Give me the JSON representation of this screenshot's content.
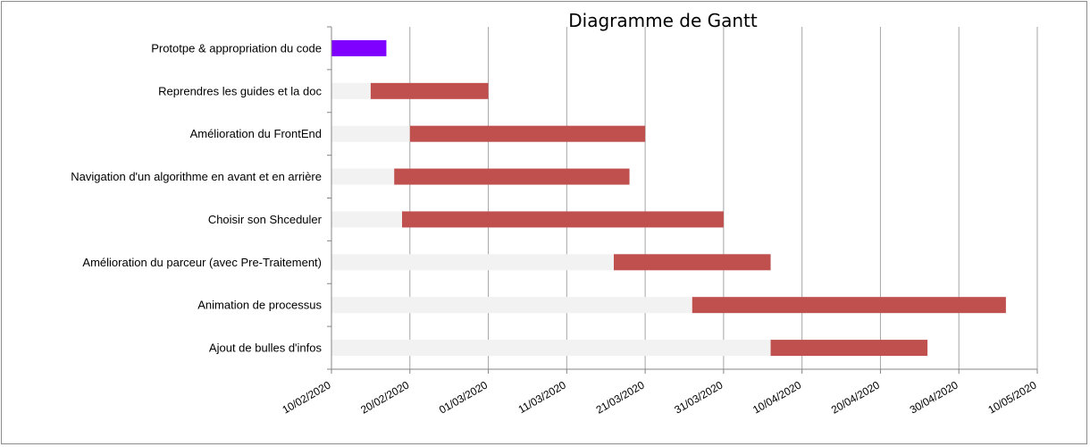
{
  "chart_data": {
    "type": "bar",
    "orientation": "horizontal",
    "stacked": true,
    "title": "Diagramme de Gantt",
    "xlabel": "",
    "ylabel": "",
    "xlim": [
      "2020-02-10",
      "2020-05-10"
    ],
    "x_ticks": [
      "10/02/2020",
      "20/02/2020",
      "01/03/2020",
      "11/03/2020",
      "21/03/2020",
      "31/03/2020",
      "10/04/2020",
      "20/04/2020",
      "30/04/2020",
      "10/05/2020"
    ],
    "grid": "vertical",
    "legend": "none",
    "categories": [
      "Prototpe & appropriation du code",
      "Reprendres les guides et la doc",
      "Amélioration du FrontEnd",
      "Navigation d'un algorithme en avant et en arrière",
      "Choisir son Shceduler",
      "Amélioration du parceur (avec Pre-Traitement)",
      "Animation de processus",
      "Ajout de bulles d'infos"
    ],
    "tasks": [
      {
        "start": "2020-02-10",
        "end": "2020-02-17",
        "color": "#7f00ff"
      },
      {
        "start": "2020-02-15",
        "end": "2020-03-01",
        "color": "#c0504d"
      },
      {
        "start": "2020-02-20",
        "end": "2020-03-21",
        "color": "#c0504d"
      },
      {
        "start": "2020-02-18",
        "end": "2020-03-19",
        "color": "#c0504d"
      },
      {
        "start": "2020-02-19",
        "end": "2020-03-31",
        "color": "#c0504d"
      },
      {
        "start": "2020-03-17",
        "end": "2020-04-06",
        "color": "#c0504d"
      },
      {
        "start": "2020-03-27",
        "end": "2020-05-06",
        "color": "#c0504d"
      },
      {
        "start": "2020-04-06",
        "end": "2020-04-26",
        "color": "#c0504d"
      }
    ],
    "offset_color": "#f2f2f2"
  }
}
